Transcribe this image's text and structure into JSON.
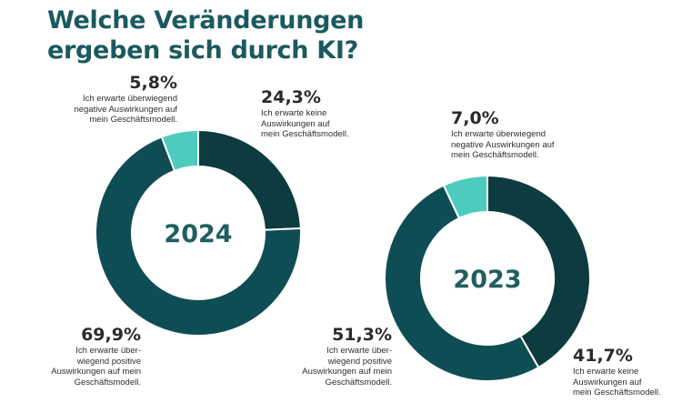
{
  "title_lines": [
    "Welche Veränderungen",
    "ergeben sich durch KI?"
  ],
  "colors": {
    "keine": "#0d3b3f",
    "positive": "#0f4d55",
    "negative": "#4ecbbf",
    "center_text": "#1f5f5f"
  },
  "chart_data": [
    {
      "type": "pie",
      "center_label": "2024",
      "slices": [
        {
          "key": "keine",
          "value": 24.3,
          "percent_label": "24,3%",
          "desc": [
            "Ich erwarte keine",
            "Auswirkungen auf",
            "mein Geschäftsmodell."
          ]
        },
        {
          "key": "positive",
          "value": 69.9,
          "percent_label": "69,9%",
          "desc": [
            "Ich erwarte über-",
            "wiegend positive",
            "Auswirkungen auf mein",
            "Geschäftsmodell."
          ]
        },
        {
          "key": "negative",
          "value": 5.8,
          "percent_label": "5,8%",
          "desc": [
            "Ich erwarte überwiegend",
            "negative Auswirkungen auf",
            "mein Geschäftsmodell."
          ]
        }
      ]
    },
    {
      "type": "pie",
      "center_label": "2023",
      "slices": [
        {
          "key": "keine",
          "value": 41.7,
          "percent_label": "41,7%",
          "desc": [
            "Ich erwarte keine",
            "Auswirkungen auf",
            "mein Geschäftsmodell."
          ]
        },
        {
          "key": "positive",
          "value": 51.3,
          "percent_label": "51,3%",
          "desc": [
            "Ich erwarte über-",
            "wiegend positive",
            "Auswirkungen auf mein",
            "Geschäftsmodell."
          ]
        },
        {
          "key": "negative",
          "value": 7.0,
          "percent_label": "7,0%",
          "desc": [
            "Ich erwarte überwiegend",
            "negative Auswirkungen auf",
            "mein Geschäftsmodell."
          ]
        }
      ]
    }
  ]
}
